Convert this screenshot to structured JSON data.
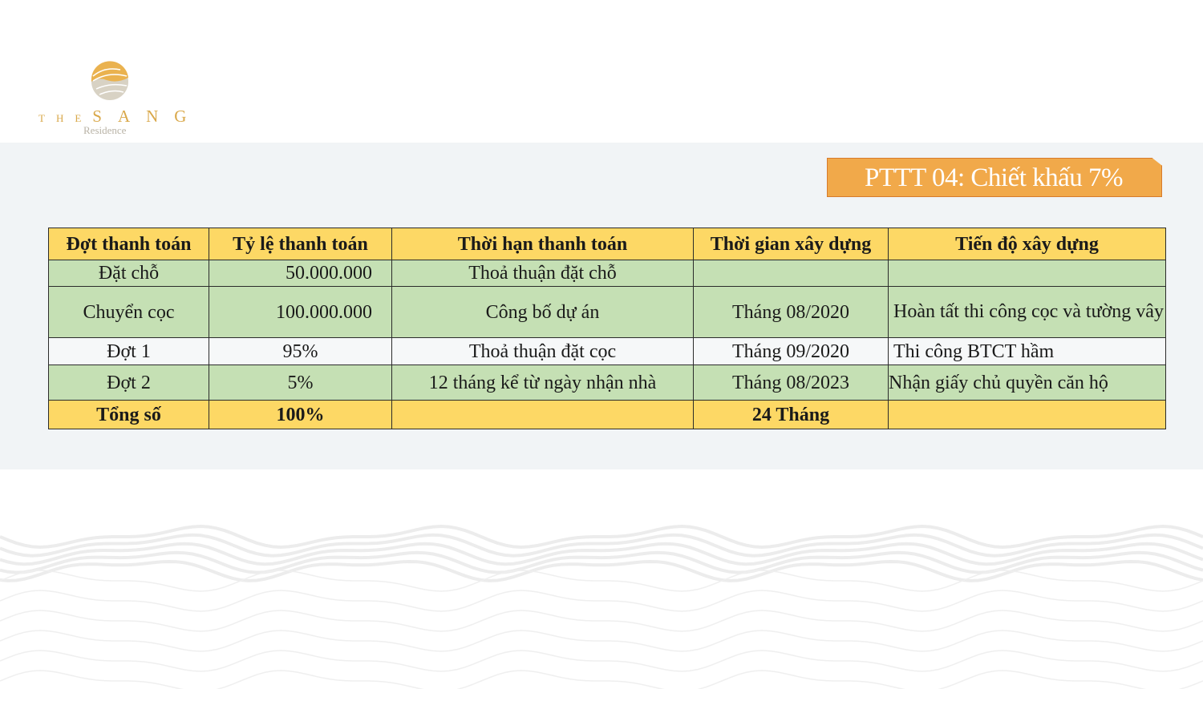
{
  "logo": {
    "brand_small": "THE",
    "brand_big": "SANG",
    "subtitle": "Residence"
  },
  "badge": {
    "title": "PTTT 04: Chiết khấu 7%",
    "color": "#f1a94a"
  },
  "table": {
    "headers": [
      "Đợt thanh toán",
      "Tỷ lệ thanh toán",
      "Thời hạn thanh toán",
      "Thời gian xây dựng",
      "Tiến độ xây dựng"
    ],
    "rows": [
      [
        "Đặt chỗ",
        "50.000.000",
        "Thoả thuận đặt chỗ",
        "",
        ""
      ],
      [
        "Chuyển cọc",
        "100.000.000",
        "Công bố dự án",
        "Tháng 08/2020",
        "Hoàn tất thi công cọc và tường vây"
      ],
      [
        "Đợt 1",
        "95%",
        "Thoả thuận đặt cọc",
        "Tháng 09/2020",
        "Thi công BTCT hầm"
      ],
      [
        "Đợt 2",
        "5%",
        "12 tháng kể từ ngày nhận nhà",
        "Tháng 08/2023",
        "Nhận giấy chủ quyền căn hộ"
      ]
    ],
    "total": [
      "Tổng số",
      "100%",
      "",
      "24 Tháng",
      ""
    ],
    "colors": {
      "header": "#fdd865",
      "green_row": "#c5e0b4",
      "white_row": "#f6f8f9"
    }
  }
}
